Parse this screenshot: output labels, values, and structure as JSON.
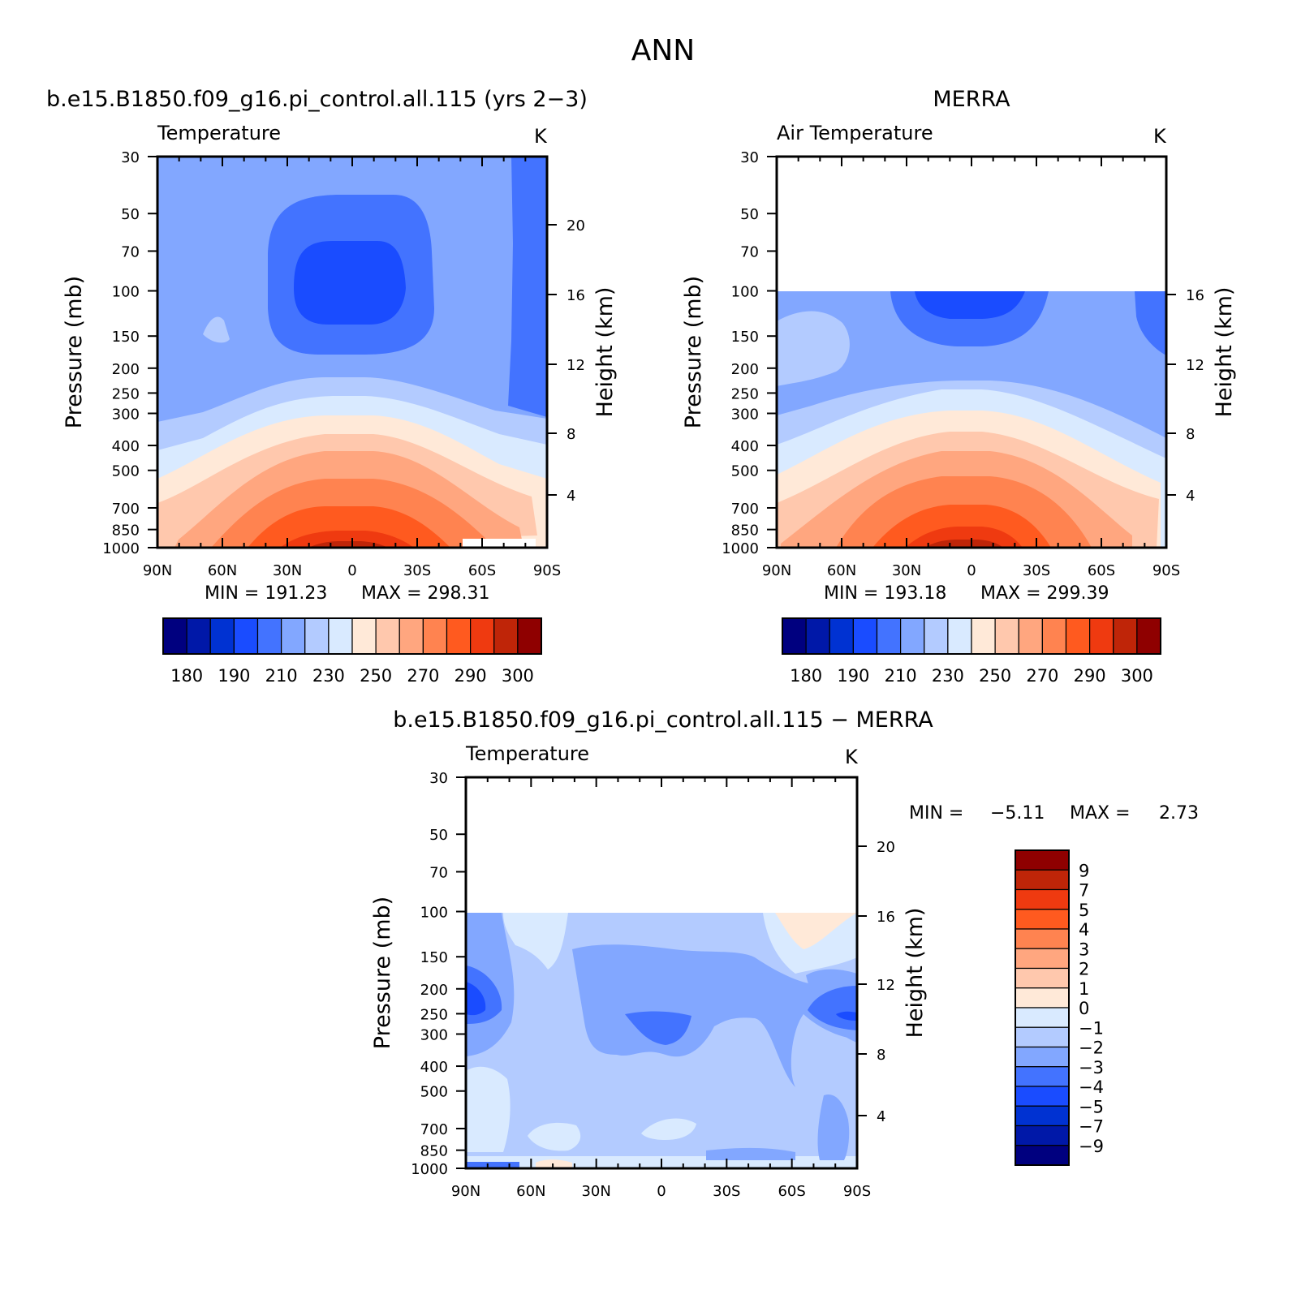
{
  "figure_title": "ANN",
  "chart_data": [
    {
      "type": "heatmap",
      "title": "b.e15.B1850.f09_g16.pi_control.all.115 (yrs 2−3)",
      "variable_label": "Temperature",
      "units": "K",
      "xlabel": "",
      "ylabel": "Pressure (mb)",
      "ylabel_right": "Height (km)",
      "x_ticks": [
        "90N",
        "60N",
        "30N",
        "0",
        "30S",
        "60S",
        "90S"
      ],
      "y_ticks": [
        30,
        50,
        70,
        100,
        150,
        200,
        250,
        300,
        400,
        500,
        700,
        850,
        1000
      ],
      "y_right_ticks": [
        20,
        16,
        12,
        8,
        4
      ],
      "y_scale": "log",
      "ylim": [
        1000,
        30
      ],
      "xlim": [
        90,
        -90
      ],
      "min_label": "MIN = 191.23",
      "max_label": "MAX = 298.31",
      "min": 191.23,
      "max": 298.31,
      "data_top_pressure": 30,
      "colorbar": {
        "orientation": "horizontal",
        "labels": [
          "180",
          "190",
          "210",
          "230",
          "250",
          "270",
          "290",
          "300"
        ],
        "colors": [
          "#00007f",
          "#0018a8",
          "#0032d2",
          "#1a4cff",
          "#4373ff",
          "#82a7ff",
          "#b3cbff",
          "#d9eaff",
          "#ffe9d8",
          "#ffc8ad",
          "#ffa67f",
          "#ff8350",
          "#ff5a1f",
          "#ef3a10",
          "#bf2508",
          "#8f0000"
        ]
      }
    },
    {
      "type": "heatmap",
      "title": "MERRA",
      "variable_label": "Air Temperature",
      "units": "K",
      "xlabel": "",
      "ylabel": "Pressure (mb)",
      "ylabel_right": "Height (km)",
      "x_ticks": [
        "90N",
        "60N",
        "30N",
        "0",
        "30S",
        "60S",
        "90S"
      ],
      "y_ticks": [
        30,
        50,
        70,
        100,
        150,
        200,
        250,
        300,
        400,
        500,
        700,
        850,
        1000
      ],
      "y_right_ticks": [
        16,
        12,
        8,
        4
      ],
      "y_scale": "log",
      "ylim": [
        1000,
        30
      ],
      "xlim": [
        90,
        -90
      ],
      "min_label": "MIN = 193.18",
      "max_label": "MAX = 299.39",
      "min": 193.18,
      "max": 299.39,
      "data_top_pressure": 100,
      "colorbar": {
        "orientation": "horizontal",
        "labels": [
          "180",
          "190",
          "210",
          "230",
          "250",
          "270",
          "290",
          "300"
        ],
        "colors": [
          "#00007f",
          "#0018a8",
          "#0032d2",
          "#1a4cff",
          "#4373ff",
          "#82a7ff",
          "#b3cbff",
          "#d9eaff",
          "#ffe9d8",
          "#ffc8ad",
          "#ffa67f",
          "#ff8350",
          "#ff5a1f",
          "#ef3a10",
          "#bf2508",
          "#8f0000"
        ]
      }
    },
    {
      "type": "heatmap",
      "title": "b.e15.B1850.f09_g16.pi_control.all.115 − MERRA",
      "variable_label": "Temperature",
      "units": "K",
      "xlabel": "",
      "ylabel": "Pressure (mb)",
      "ylabel_right": "Height (km)",
      "x_ticks": [
        "90N",
        "60N",
        "30N",
        "0",
        "30S",
        "60S",
        "90S"
      ],
      "y_ticks": [
        30,
        50,
        70,
        100,
        150,
        200,
        250,
        300,
        400,
        500,
        700,
        850,
        1000
      ],
      "y_right_ticks": [
        20,
        16,
        12,
        8,
        4
      ],
      "y_scale": "log",
      "ylim": [
        1000,
        30
      ],
      "xlim": [
        90,
        -90
      ],
      "min_label": "MIN =",
      "min_value": "−5.11",
      "max_label": "MAX =",
      "max_value": "2.73",
      "min": -5.11,
      "max": 2.73,
      "data_top_pressure": 100,
      "colorbar": {
        "orientation": "vertical",
        "labels": [
          "9",
          "7",
          "5",
          "4",
          "3",
          "2",
          "1",
          "0",
          "−1",
          "−2",
          "−3",
          "−4",
          "−5",
          "−7",
          "−9"
        ],
        "colors": [
          "#8f0000",
          "#bf2508",
          "#ef3a10",
          "#ff5a1f",
          "#ff8350",
          "#ffa67f",
          "#ffc8ad",
          "#ffe9d8",
          "#d9eaff",
          "#b3cbff",
          "#82a7ff",
          "#4373ff",
          "#1a4cff",
          "#0032d2",
          "#0018a8",
          "#00007f"
        ]
      }
    }
  ]
}
